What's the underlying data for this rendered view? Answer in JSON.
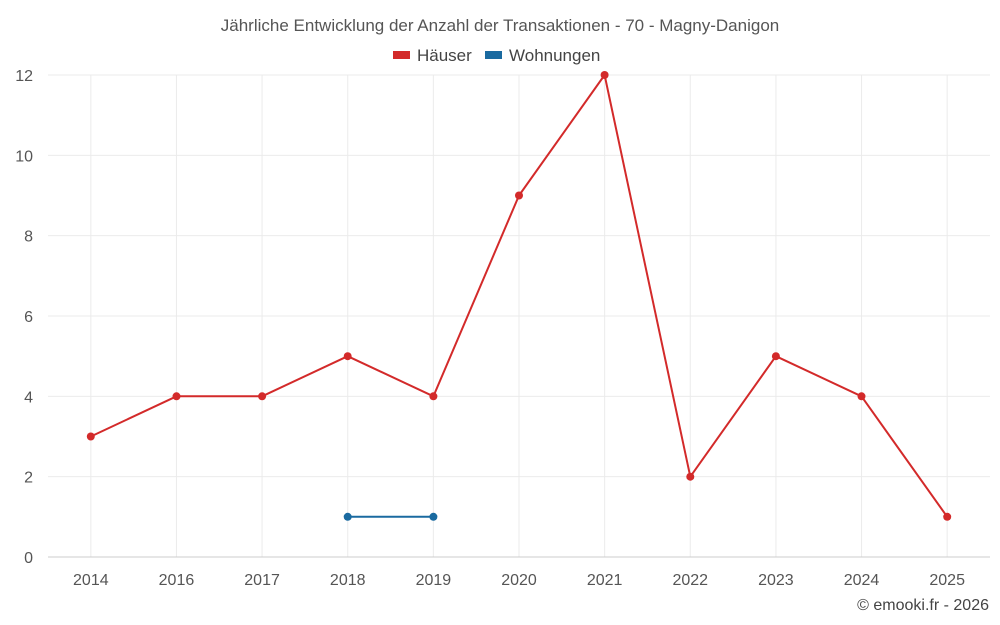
{
  "chart_data": {
    "type": "line",
    "title": "Jährliche Entwicklung der Anzahl der Transaktionen - 70 - Magny-Danigon",
    "categories": [
      "2014",
      "2016",
      "2017",
      "2018",
      "2019",
      "2020",
      "2021",
      "2022",
      "2023",
      "2024",
      "2025"
    ],
    "series": [
      {
        "name": "Häuser",
        "color": "#d32a2a",
        "values": [
          3,
          4,
          4,
          5,
          4,
          9,
          12,
          2,
          5,
          4,
          1
        ]
      },
      {
        "name": "Wohnungen",
        "color": "#1a6aa0",
        "values": [
          null,
          null,
          null,
          1,
          1,
          null,
          null,
          null,
          null,
          null,
          null
        ]
      }
    ],
    "ylim": [
      0,
      12
    ],
    "yticks": [
      0,
      2,
      4,
      6,
      8,
      10,
      12
    ],
    "grid": true,
    "legend_position": "top-center"
  },
  "credit": "© emooki.fr - 2026"
}
